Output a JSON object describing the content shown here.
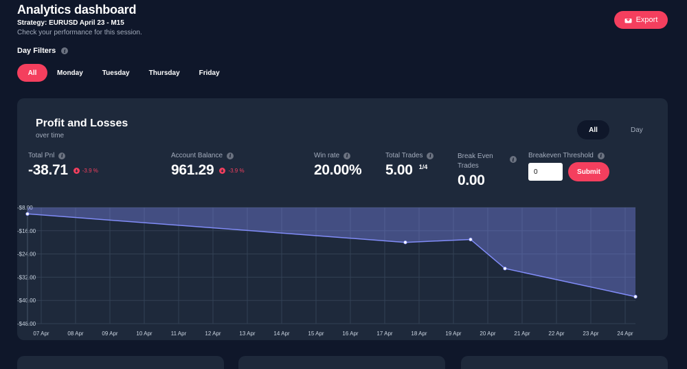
{
  "header": {
    "title": "Analytics dashboard",
    "subtitle": "Strategy: EURUSD April 23 - M15",
    "description": "Check your performance for this session.",
    "day_filters_label": "Day Filters",
    "export_label": "Export"
  },
  "filters": [
    {
      "label": "All",
      "active": true
    },
    {
      "label": "Monday",
      "active": false
    },
    {
      "label": "Tuesday",
      "active": false
    },
    {
      "label": "Thursday",
      "active": false
    },
    {
      "label": "Friday",
      "active": false
    }
  ],
  "card": {
    "title": "Profit and Losses",
    "subtitle": "over time",
    "toggle": [
      {
        "label": "All",
        "active": true
      },
      {
        "label": "Day",
        "active": false
      }
    ]
  },
  "stats": {
    "total_pnl": {
      "label": "Total Pnl",
      "value": "-38.71",
      "delta": "-3.9 %"
    },
    "account_balance": {
      "label": "Account Balance",
      "value": "961.29",
      "delta": "-3.9 %"
    },
    "win_rate": {
      "label": "Win rate",
      "value": "20.00%"
    },
    "total_trades": {
      "label": "Total Trades",
      "value": "5.00",
      "fraction": "1/4"
    },
    "break_even": {
      "label_line1": "Break Even",
      "label_line2": "Trades",
      "value": "0.00"
    },
    "threshold": {
      "label": "Breakeven Threshold",
      "input_value": "0",
      "submit_label": "Submit"
    }
  },
  "colors": {
    "accent": "#f43f5e",
    "background": "#0f172a",
    "card": "#1e293b",
    "line": "#818cf8"
  },
  "chart_data": {
    "type": "area",
    "title": "Profit and Losses",
    "categories": [
      "07 Apr",
      "08 Apr",
      "09 Apr",
      "10 Apr",
      "11 Apr",
      "12 Apr",
      "13 Apr",
      "14 Apr",
      "15 Apr",
      "16 Apr",
      "17 Apr",
      "18 Apr",
      "19 Apr",
      "20 Apr",
      "21 Apr",
      "22 Apr",
      "23 Apr",
      "24 Apr"
    ],
    "y_ticks": [
      "-$8.00",
      "-$16.00",
      "-$24.00",
      "-$32.00",
      "-$40.00",
      "-$48.00"
    ],
    "ylim": [
      -48,
      -8
    ],
    "xlim": [
      6.6,
      24.3
    ],
    "points": [
      {
        "x": 6.6,
        "y": -10.2
      },
      {
        "x": 17.6,
        "y": -20.0
      },
      {
        "x": 19.5,
        "y": -19.0
      },
      {
        "x": 20.5,
        "y": -29.0
      },
      {
        "x": 24.3,
        "y": -38.7
      }
    ]
  }
}
